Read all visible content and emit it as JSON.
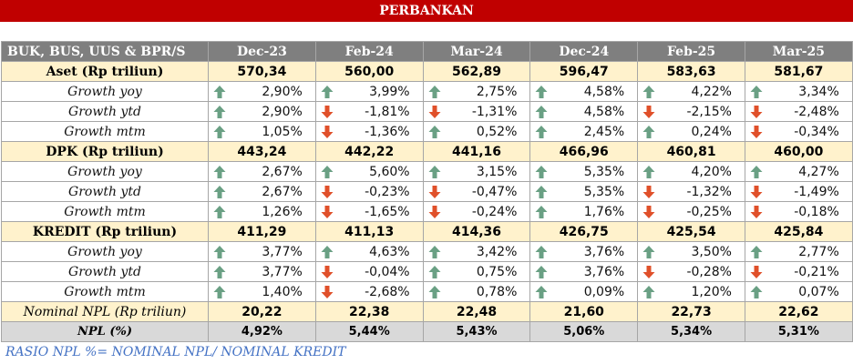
{
  "title": "PERBANKAN",
  "header_label": "BUK, BUS, UUS & BPR/S",
  "periods": [
    "Dec-23",
    "Feb-24",
    "Mar-24",
    "Dec-24",
    "Feb-25",
    "Mar-25"
  ],
  "colors": {
    "up": "#6aa084",
    "down": "#e0502a",
    "title_bg": "#c00000",
    "header_bg": "#7f7f7f",
    "highlight_bg": "#fff2cc",
    "npl_bg": "#d9d9d9",
    "note": "#4472c4"
  },
  "rows": [
    {
      "type": "main",
      "label": "Aset (Rp triliun)",
      "values": [
        "570,34",
        "560,00",
        "562,89",
        "596,47",
        "583,63",
        "581,67"
      ]
    },
    {
      "type": "sub",
      "label": "Growth yoy",
      "values": [
        "2,90%",
        "3,99%",
        "2,75%",
        "4,58%",
        "4,22%",
        "3,34%"
      ],
      "dirs": [
        "up",
        "up",
        "up",
        "up",
        "up",
        "up"
      ]
    },
    {
      "type": "sub",
      "label": "Growth ytd",
      "values": [
        "2,90%",
        "-1,81%",
        "-1,31%",
        "4,58%",
        "-2,15%",
        "-2,48%"
      ],
      "dirs": [
        "up",
        "down",
        "down",
        "up",
        "down",
        "down"
      ]
    },
    {
      "type": "sub",
      "label": "Growth mtm",
      "values": [
        "1,05%",
        "-1,36%",
        "0,52%",
        "2,45%",
        "0,24%",
        "-0,34%"
      ],
      "dirs": [
        "up",
        "down",
        "up",
        "up",
        "up",
        "down"
      ]
    },
    {
      "type": "main",
      "label": "DPK (Rp triliun)",
      "values": [
        "443,24",
        "442,22",
        "441,16",
        "466,96",
        "460,81",
        "460,00"
      ]
    },
    {
      "type": "sub",
      "label": "Growth yoy",
      "values": [
        "2,67%",
        "5,60%",
        "3,15%",
        "5,35%",
        "4,20%",
        "4,27%"
      ],
      "dirs": [
        "up",
        "up",
        "up",
        "up",
        "up",
        "up"
      ]
    },
    {
      "type": "sub",
      "label": "Growth ytd",
      "values": [
        "2,67%",
        "-0,23%",
        "-0,47%",
        "5,35%",
        "-1,32%",
        "-1,49%"
      ],
      "dirs": [
        "up",
        "down",
        "down",
        "up",
        "down",
        "down"
      ]
    },
    {
      "type": "sub",
      "label": "Growth mtm",
      "values": [
        "1,26%",
        "-1,65%",
        "-0,24%",
        "1,76%",
        "-0,25%",
        "-0,18%"
      ],
      "dirs": [
        "up",
        "down",
        "down",
        "up",
        "down",
        "down"
      ]
    },
    {
      "type": "main",
      "label": "KREDIT  (Rp triliun)",
      "values": [
        "411,29",
        "411,13",
        "414,36",
        "426,75",
        "425,54",
        "425,84"
      ]
    },
    {
      "type": "sub",
      "label": "Growth yoy",
      "values": [
        "3,77%",
        "4,63%",
        "3,42%",
        "3,76%",
        "3,50%",
        "2,77%"
      ],
      "dirs": [
        "up",
        "up",
        "up",
        "up",
        "up",
        "up"
      ]
    },
    {
      "type": "sub",
      "label": "Growth ytd",
      "values": [
        "3,77%",
        "-0,04%",
        "0,75%",
        "3,76%",
        "-0,28%",
        "-0,21%"
      ],
      "dirs": [
        "up",
        "down",
        "up",
        "up",
        "down",
        "down"
      ]
    },
    {
      "type": "sub",
      "label": "Growth mtm",
      "values": [
        "1,40%",
        "-2,68%",
        "0,78%",
        "0,09%",
        "1,20%",
        "0,07%"
      ],
      "dirs": [
        "up",
        "down",
        "up",
        "up",
        "up",
        "up"
      ]
    },
    {
      "type": "npln",
      "label": "Nominal NPL (Rp triliun)",
      "values": [
        "20,22",
        "22,38",
        "22,48",
        "21,60",
        "22,73",
        "22,62"
      ]
    },
    {
      "type": "nplp",
      "label": "NPL (%)",
      "values": [
        "4,92%",
        "5,44%",
        "5,43%",
        "5,06%",
        "5,34%",
        "5,31%"
      ]
    }
  ],
  "note": "RASIO NPL %= NOMINAL NPL/ NOMINAL KREDIT"
}
